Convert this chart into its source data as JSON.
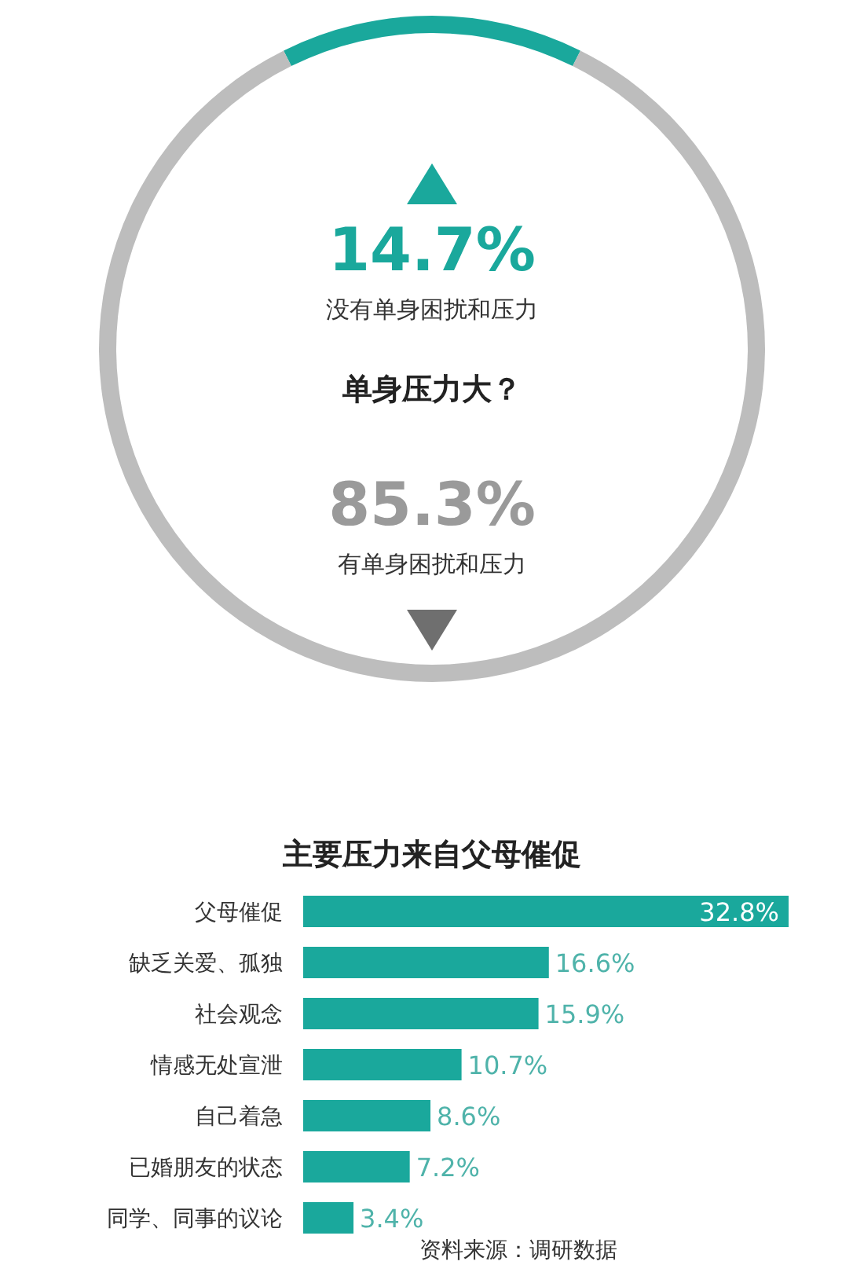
{
  "chart_data": [
    {
      "type": "donut",
      "title": "单身压力大？",
      "categories": [
        "没有单身困扰和压力",
        "有单身困扰和压力"
      ],
      "values": [
        14.7,
        85.3
      ],
      "colors": [
        "#1aa89c",
        "#bdbdbd"
      ],
      "value_labels": [
        "14.7%",
        "85.3%"
      ]
    },
    {
      "type": "bar",
      "orientation": "horizontal",
      "title": "主要压力来自父母催促",
      "categories": [
        "父母催促",
        "缺乏关爱、孤独",
        "社会观念",
        "情感无处宣泄",
        "自己着急",
        "已婚朋友的状态",
        "同学、同事的议论"
      ],
      "values": [
        32.8,
        16.6,
        15.9,
        10.7,
        8.6,
        7.2,
        3.4
      ],
      "color": "#1aa89c",
      "value_labels": [
        "32.8%",
        "16.6%",
        "15.9%",
        "10.7%",
        "8.6%",
        "7.2%",
        "3.4%"
      ],
      "annotations": [
        "资料来源：调研数据"
      ]
    }
  ]
}
